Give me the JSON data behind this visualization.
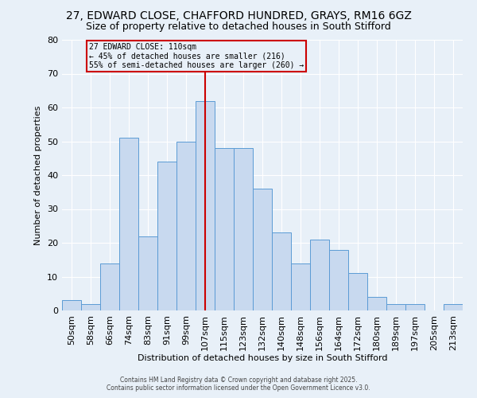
{
  "title_line1": "27, EDWARD CLOSE, CHAFFORD HUNDRED, GRAYS, RM16 6GZ",
  "title_line2": "Size of property relative to detached houses in South Stifford",
  "xlabel": "Distribution of detached houses by size in South Stifford",
  "ylabel": "Number of detached properties",
  "categories": [
    "50sqm",
    "58sqm",
    "66sqm",
    "74sqm",
    "83sqm",
    "91sqm",
    "99sqm",
    "107sqm",
    "115sqm",
    "123sqm",
    "132sqm",
    "140sqm",
    "148sqm",
    "156sqm",
    "164sqm",
    "172sqm",
    "180sqm",
    "189sqm",
    "197sqm",
    "205sqm",
    "213sqm"
  ],
  "values": [
    3,
    2,
    14,
    51,
    22,
    44,
    50,
    62,
    48,
    48,
    36,
    23,
    14,
    21,
    18,
    11,
    4,
    2,
    2,
    0,
    2
  ],
  "bar_color": "#c8d9ef",
  "bar_edge_color": "#5b9bd5",
  "vline_x_index": 7,
  "vline_color": "#cc0000",
  "annotation_title": "27 EDWARD CLOSE: 110sqm",
  "annotation_line1": "← 45% of detached houses are smaller (216)",
  "annotation_line2": "55% of semi-detached houses are larger (260) →",
  "annotation_box_color": "#cc0000",
  "ylim": [
    0,
    80
  ],
  "yticks": [
    0,
    10,
    20,
    30,
    40,
    50,
    60,
    70,
    80
  ],
  "background_color": "#e8f0f8",
  "footer_line1": "Contains HM Land Registry data © Crown copyright and database right 2025.",
  "footer_line2": "Contains public sector information licensed under the Open Government Licence v3.0.",
  "title_fontsize": 10,
  "subtitle_fontsize": 9,
  "ylabel_text": "Number of detached properties"
}
